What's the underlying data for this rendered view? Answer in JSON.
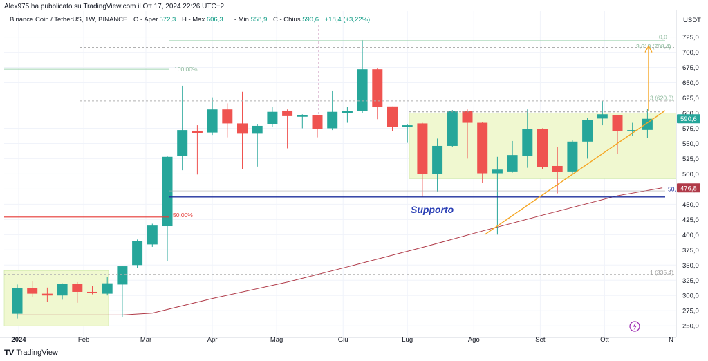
{
  "header": {
    "publisher_line": "Alex975 ha pubblicato su TradingView.com il Ott 17, 2024 22:26 UTC+2"
  },
  "legend": {
    "symbol": "Binance Coin / TetherUS, 1W, BINANCE",
    "open_label": "O - Aper.",
    "open_value": "572,3",
    "high_label": "H - Max.",
    "high_value": "606,3",
    "low_label": "L - Min.",
    "low_value": "558,9",
    "close_label": "C - Chius.",
    "close_value": "590,6",
    "change_value": "+18,4 (+3,22%)"
  },
  "footer": {
    "brand": "TradingView"
  },
  "colors": {
    "up": "#26a69a",
    "down": "#ef5350",
    "zone_fill": "#f0f8d0",
    "support_line": "#1e2f9c",
    "trend_line": "#f5a623",
    "ma_line": "#b03a48",
    "fib_line": "#9fd4b0",
    "fifty_line": "#e53935"
  },
  "chart_data": {
    "type": "candlestick",
    "title": "Binance Coin / TetherUS, 1W, BINANCE",
    "ylabel": "USDT",
    "ylim": [
      240,
      745
    ],
    "y_ticks": [
      "250,0",
      "275,0",
      "300,0",
      "325,0",
      "350,0",
      "375,0",
      "400,0",
      "425,0",
      "450,0",
      "475,0",
      "500,0",
      "525,0",
      "550,0",
      "575,0",
      "600,0",
      "625,0",
      "650,0",
      "675,0",
      "700,0",
      "725,0"
    ],
    "x_tick_labels": [
      "2024",
      "Feb",
      "Mar",
      "Apr",
      "Mag",
      "Giu",
      "Lug",
      "Ago",
      "Set",
      "Ott",
      "N"
    ],
    "candles": [
      {
        "date": "2024-01-01",
        "open": 270,
        "high": 318,
        "low": 262,
        "close": 312
      },
      {
        "date": "2024-01-08",
        "open": 312,
        "high": 323,
        "low": 298,
        "close": 303
      },
      {
        "date": "2024-01-15",
        "open": 303,
        "high": 313,
        "low": 290,
        "close": 300
      },
      {
        "date": "2024-01-22",
        "open": 300,
        "high": 320,
        "low": 293,
        "close": 319
      },
      {
        "date": "2024-01-29",
        "open": 319,
        "high": 322,
        "low": 288,
        "close": 306
      },
      {
        "date": "2024-02-05",
        "open": 306,
        "high": 316,
        "low": 302,
        "close": 305
      },
      {
        "date": "2024-02-12",
        "open": 303,
        "high": 330,
        "low": 300,
        "close": 320
      },
      {
        "date": "2024-02-19",
        "open": 318,
        "high": 349,
        "low": 265,
        "close": 348
      },
      {
        "date": "2024-02-26",
        "open": 350,
        "high": 392,
        "low": 345,
        "close": 389
      },
      {
        "date": "2024-03-04",
        "open": 384,
        "high": 418,
        "low": 380,
        "close": 415
      },
      {
        "date": "2024-03-11",
        "open": 414,
        "high": 529,
        "low": 357,
        "close": 528
      },
      {
        "date": "2024-03-18",
        "open": 529,
        "high": 645,
        "low": 506,
        "close": 572
      },
      {
        "date": "2024-03-25",
        "open": 571,
        "high": 580,
        "low": 499,
        "close": 567
      },
      {
        "date": "2024-04-01",
        "open": 568,
        "high": 626,
        "low": 564,
        "close": 606
      },
      {
        "date": "2024-04-08",
        "open": 606,
        "high": 616,
        "low": 560,
        "close": 583
      },
      {
        "date": "2024-04-15",
        "open": 583,
        "high": 635,
        "low": 508,
        "close": 566
      },
      {
        "date": "2024-04-22",
        "open": 566,
        "high": 582,
        "low": 512,
        "close": 579
      },
      {
        "date": "2024-04-29",
        "open": 582,
        "high": 610,
        "low": 577,
        "close": 602
      },
      {
        "date": "2024-05-06",
        "open": 604,
        "high": 606,
        "low": 542,
        "close": 595
      },
      {
        "date": "2024-05-13",
        "open": 594,
        "high": 598,
        "low": 575,
        "close": 596
      },
      {
        "date": "2024-05-20",
        "open": 596,
        "high": 597,
        "low": 560,
        "close": 574
      },
      {
        "date": "2024-05-27",
        "open": 575,
        "high": 637,
        "low": 572,
        "close": 602
      },
      {
        "date": "2024-06-03",
        "open": 600,
        "high": 610,
        "low": 584,
        "close": 603
      },
      {
        "date": "2024-06-10",
        "open": 603,
        "high": 720,
        "low": 600,
        "close": 672
      },
      {
        "date": "2024-06-17",
        "open": 672,
        "high": 674,
        "low": 590,
        "close": 610
      },
      {
        "date": "2024-06-24",
        "open": 611,
        "high": 611,
        "low": 570,
        "close": 577
      },
      {
        "date": "2024-07-01",
        "open": 577,
        "high": 582,
        "low": 551,
        "close": 580
      },
      {
        "date": "2024-07-08",
        "open": 583,
        "high": 584,
        "low": 462,
        "close": 500
      },
      {
        "date": "2024-07-15",
        "open": 500,
        "high": 558,
        "low": 471,
        "close": 546
      },
      {
        "date": "2024-07-22",
        "open": 546,
        "high": 605,
        "low": 544,
        "close": 603
      },
      {
        "date": "2024-07-29",
        "open": 603,
        "high": 606,
        "low": 525,
        "close": 584
      },
      {
        "date": "2024-08-05",
        "open": 584,
        "high": 585,
        "low": 485,
        "close": 501
      },
      {
        "date": "2024-08-12",
        "open": 501,
        "high": 528,
        "low": 400,
        "close": 507
      },
      {
        "date": "2024-08-19",
        "open": 504,
        "high": 554,
        "low": 502,
        "close": 531
      },
      {
        "date": "2024-08-26",
        "open": 530,
        "high": 606,
        "low": 510,
        "close": 574
      },
      {
        "date": "2024-09-02",
        "open": 574,
        "high": 575,
        "low": 508,
        "close": 511
      },
      {
        "date": "2024-09-09",
        "open": 513,
        "high": 544,
        "low": 468,
        "close": 503
      },
      {
        "date": "2024-09-16",
        "open": 504,
        "high": 555,
        "low": 500,
        "close": 553
      },
      {
        "date": "2024-09-23",
        "open": 553,
        "high": 592,
        "low": 525,
        "close": 589
      },
      {
        "date": "2024-09-30",
        "open": 591,
        "high": 620,
        "low": 580,
        "close": 598
      },
      {
        "date": "2024-10-07",
        "open": 596,
        "high": 597,
        "low": 533,
        "close": 570
      },
      {
        "date": "2024-10-14",
        "open": 571,
        "high": 584,
        "low": 563,
        "close": 572
      },
      {
        "date": "2024-10-21",
        "open": 572.3,
        "high": 606.3,
        "low": 558.9,
        "close": 590.6
      }
    ],
    "moving_average": [
      {
        "date": "2024-01-01",
        "value": 268
      },
      {
        "date": "2024-02-19",
        "value": 268
      },
      {
        "date": "2024-03-04",
        "value": 271
      },
      {
        "date": "2024-04-01",
        "value": 295
      },
      {
        "date": "2024-05-06",
        "value": 322
      },
      {
        "date": "2024-06-03",
        "value": 347
      },
      {
        "date": "2024-07-08",
        "value": 379
      },
      {
        "date": "2024-08-05",
        "value": 406
      },
      {
        "date": "2024-09-02",
        "value": 432
      },
      {
        "date": "2024-10-07",
        "value": 464
      },
      {
        "date": "2024-10-28",
        "value": 477
      }
    ],
    "annotations": {
      "support_label": "Supporto",
      "support_level": 461,
      "fib_labels": [
        "100,00%",
        "50,00%",
        "0,0",
        "3,618 (708,4)",
        "3 (620,3)",
        "1 (335,4)",
        "50,"
      ],
      "price_tag_current": "590,6",
      "price_tag_ma": "476,8"
    }
  }
}
